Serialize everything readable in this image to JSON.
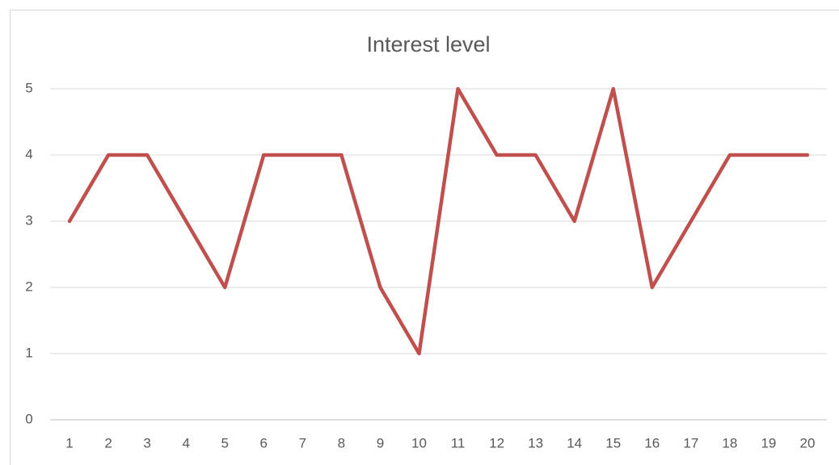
{
  "chart_data": {
    "type": "line",
    "title": "Interest level",
    "categories": [
      "1",
      "2",
      "3",
      "4",
      "5",
      "6",
      "7",
      "8",
      "9",
      "10",
      "11",
      "12",
      "13",
      "14",
      "15",
      "16",
      "17",
      "18",
      "19",
      "20"
    ],
    "series": [
      {
        "name": "Interest level",
        "color": "#c0504d",
        "values": [
          3,
          4,
          4,
          3,
          2,
          4,
          4,
          4,
          2,
          1,
          5,
          4,
          4,
          3,
          5,
          2,
          3,
          4,
          4,
          4
        ]
      }
    ],
    "ylim": [
      0,
      5
    ],
    "yticks": [
      0,
      1,
      2,
      3,
      4,
      5
    ],
    "grid": true
  }
}
